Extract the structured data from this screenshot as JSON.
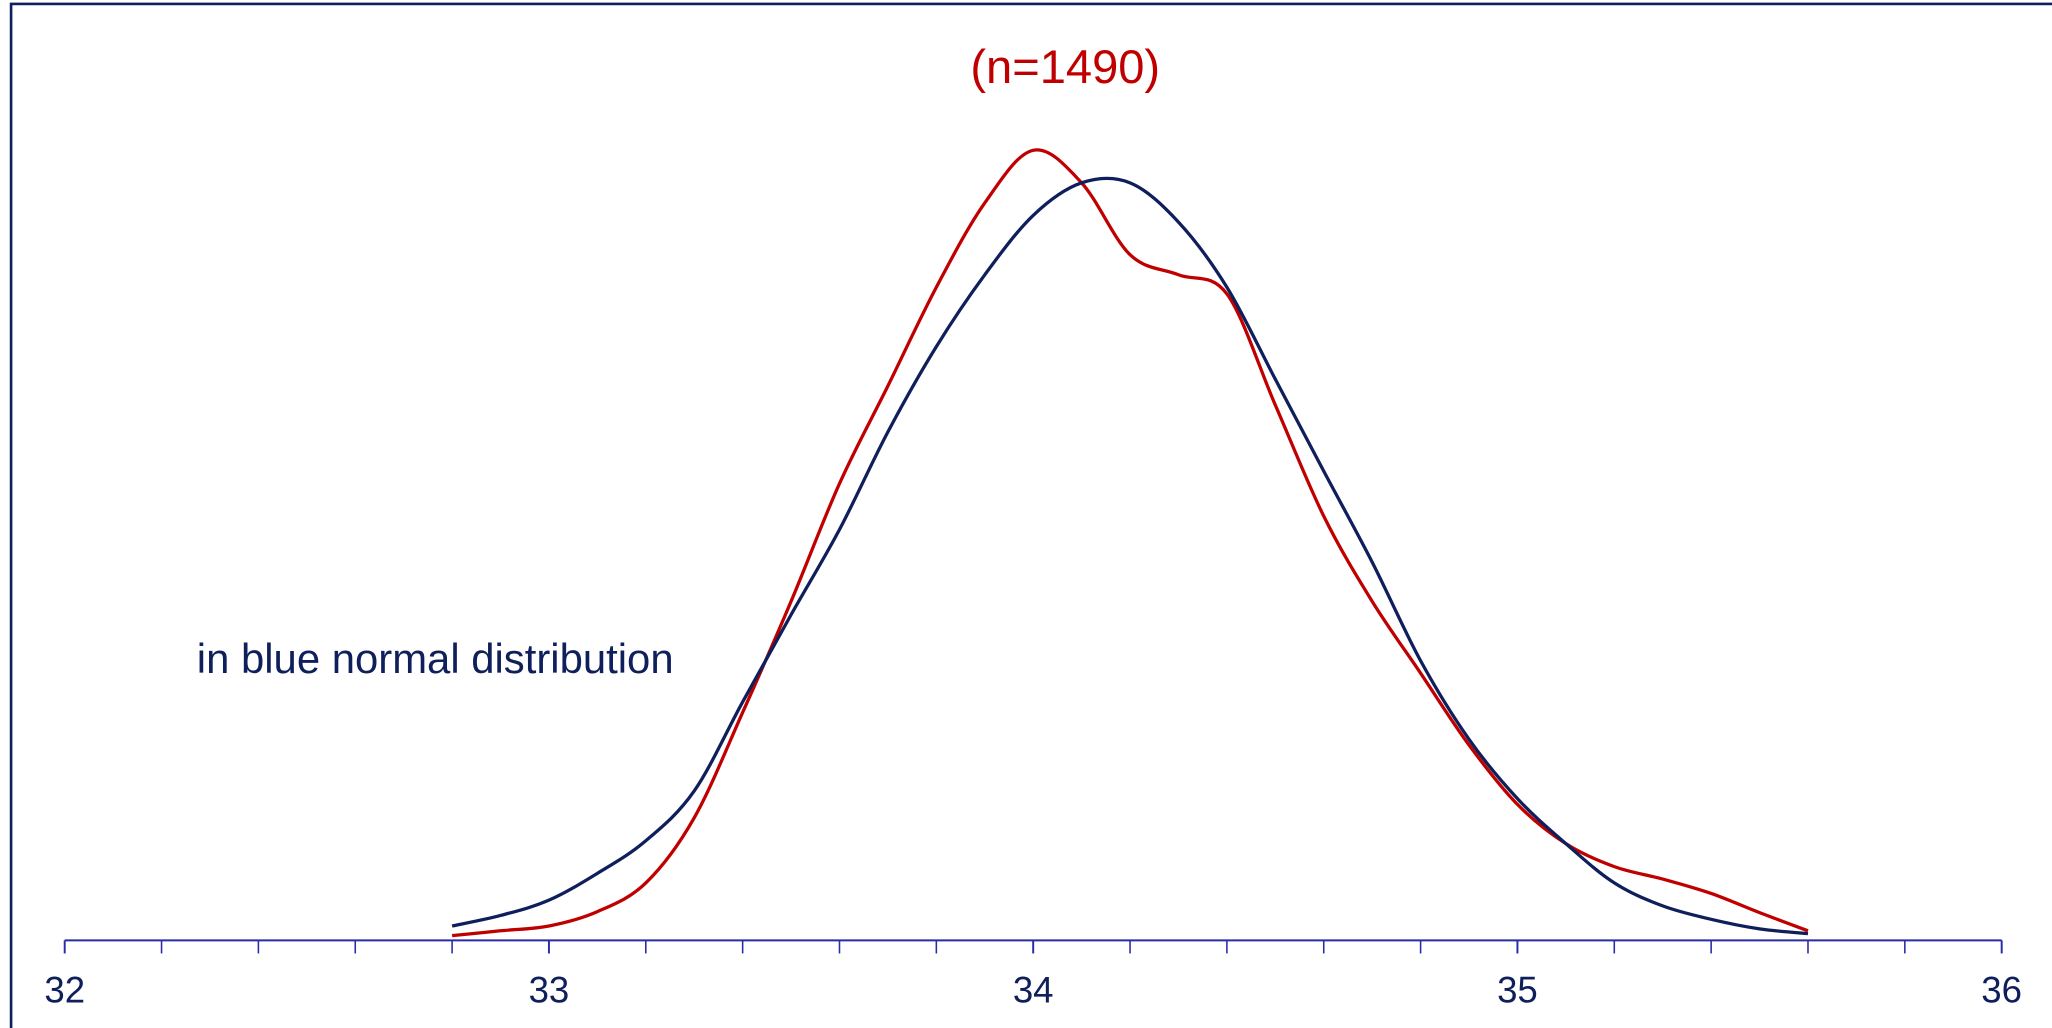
{
  "chart_data": {
    "type": "line",
    "title": "(n=1490)",
    "annotation": "in blue normal distribution",
    "x": [
      32.8,
      32.9,
      33.0,
      33.1,
      33.2,
      33.3,
      33.4,
      33.5,
      33.6,
      33.7,
      33.8,
      33.9,
      34.0,
      34.1,
      34.2,
      34.3,
      34.4,
      34.5,
      34.6,
      34.7,
      34.8,
      34.9,
      35.0,
      35.1,
      35.2,
      35.3,
      35.4,
      35.5,
      35.6
    ],
    "series": [
      {
        "color": "#c00000",
        "values": [
          0.005,
          0.01,
          0.015,
          0.03,
          0.06,
          0.128,
          0.238,
          0.354,
          0.477,
          0.579,
          0.682,
          0.77,
          0.825,
          0.791,
          0.716,
          0.695,
          0.675,
          0.559,
          0.443,
          0.354,
          0.279,
          0.204,
          0.142,
          0.101,
          0.077,
          0.064,
          0.049,
          0.029,
          0.01
        ]
      },
      {
        "color": "#0e1f5b",
        "values": [
          0.015,
          0.026,
          0.042,
          0.07,
          0.104,
          0.156,
          0.249,
          0.34,
          0.429,
          0.531,
          0.62,
          0.695,
          0.757,
          0.791,
          0.791,
          0.75,
          0.682,
          0.586,
          0.49,
          0.395,
          0.292,
          0.21,
          0.148,
          0.101,
          0.06,
          0.036,
          0.022,
          0.012,
          0.007
        ]
      }
    ],
    "xlim": [
      32,
      36
    ],
    "xticks": [
      32,
      33,
      34,
      35,
      36
    ],
    "xminorticks": [
      32.2,
      32.4,
      32.6,
      32.8,
      33.2,
      33.4,
      33.6,
      33.8,
      34.2,
      34.4,
      34.6,
      34.8,
      35.2,
      35.4,
      35.6,
      35.8
    ],
    "ylim": [
      0,
      0.9
    ],
    "axis_color": "#2b2ba8",
    "text_color": "#0e1f5b",
    "title_color": "#c00000"
  }
}
